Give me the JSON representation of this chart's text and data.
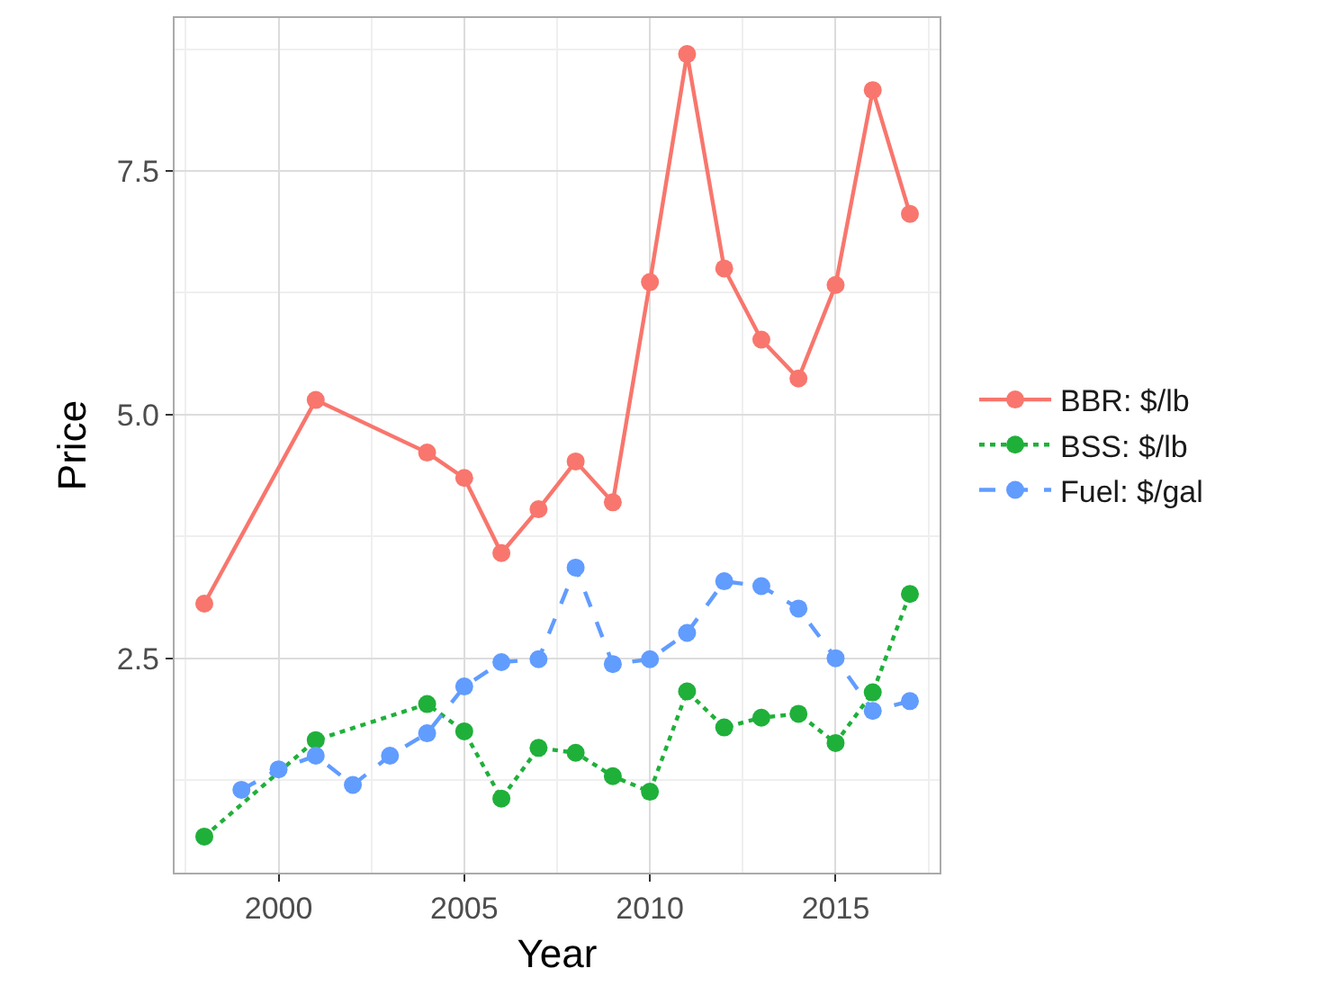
{
  "chart_data": {
    "type": "line",
    "xlabel": "Year",
    "ylabel": "Price",
    "xlim": [
      1997.2,
      2017.8
    ],
    "xticks": [
      2000,
      2005,
      2010,
      2015
    ],
    "ylim": [
      0.3,
      9.07
    ],
    "yticks": [
      2.5,
      {
        "value": 5,
        "label": "5.0"
      },
      7.5
    ],
    "grid": true,
    "legend": "right",
    "marker": "circle",
    "series": [
      {
        "name": "BBR: $/lb",
        "color": "#f8766d",
        "line_style": "solid",
        "x": [
          1998,
          2001,
          2004,
          2005,
          2006,
          2007,
          2008,
          2009,
          2010,
          2011,
          2012,
          2013,
          2014,
          2015,
          2016,
          2017
        ],
        "values": [
          3.06,
          5.15,
          4.61,
          4.35,
          3.58,
          4.03,
          4.52,
          4.1,
          6.36,
          8.7,
          6.5,
          5.77,
          5.37,
          6.33,
          8.33,
          7.06
        ]
      },
      {
        "name": "BSS: $/lb",
        "color": "#1fb03a",
        "line_style": "dotted",
        "x": [
          1998,
          2001,
          2004,
          2005,
          2006,
          2007,
          2008,
          2009,
          2010,
          2011,
          2012,
          2013,
          2014,
          2015,
          2016,
          2017
        ],
        "values": [
          0.67,
          1.66,
          2.03,
          1.75,
          1.06,
          1.58,
          1.53,
          1.29,
          1.13,
          2.16,
          1.79,
          1.89,
          1.93,
          1.63,
          2.15,
          3.16
        ]
      },
      {
        "name": "Fuel: $/gal",
        "color": "#619cff",
        "line_style": "dashed",
        "x": [
          1999,
          2000,
          2001,
          2002,
          2003,
          2004,
          2005,
          2006,
          2007,
          2008,
          2009,
          2010,
          2011,
          2012,
          2013,
          2014,
          2015,
          2016,
          2017
        ],
        "values": [
          1.15,
          1.36,
          1.5,
          1.2,
          1.5,
          1.73,
          2.21,
          2.46,
          2.49,
          3.43,
          2.44,
          2.49,
          2.76,
          3.29,
          3.24,
          3.01,
          2.5,
          1.96,
          2.06
        ]
      }
    ]
  }
}
